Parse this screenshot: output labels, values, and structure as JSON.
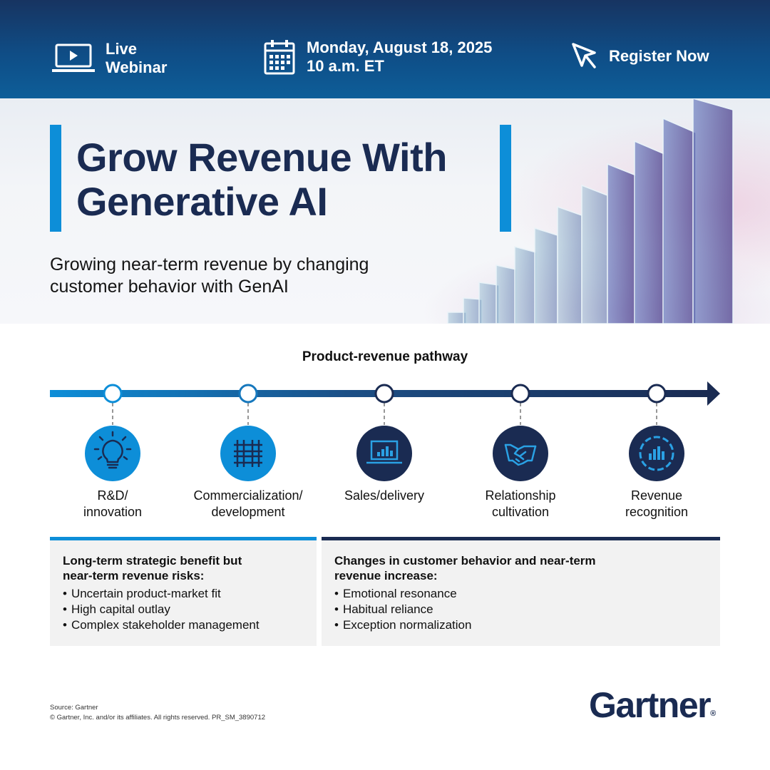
{
  "header": {
    "webinar_line1": "Live",
    "webinar_line2": "Webinar",
    "date": "Monday, August 18, 2025",
    "time": "10 a.m. ET",
    "register_label": "Register Now"
  },
  "hero": {
    "title_line1": "Grow Revenue With",
    "title_line2": "Generative AI",
    "subtitle_line1": "Growing near-term revenue by changing",
    "subtitle_line2": "customer behavior with GenAI"
  },
  "pathway": {
    "title": "Product-revenue pathway",
    "stages": [
      {
        "line1": "R&D/",
        "line2": "innovation",
        "icon": "lightbulb-icon",
        "tone": "light"
      },
      {
        "line1": "Commercialization/",
        "line2": "development",
        "icon": "circuit-grid-icon",
        "tone": "light"
      },
      {
        "line1": "Sales/delivery",
        "line2": "",
        "icon": "laptop-chart-icon",
        "tone": "dark"
      },
      {
        "line1": "Relationship",
        "line2": "cultivation",
        "icon": "handshake-icon",
        "tone": "dark"
      },
      {
        "line1": "Revenue",
        "line2": "recognition",
        "icon": "revenue-chart-icon",
        "tone": "dark"
      }
    ]
  },
  "boxes": {
    "left": {
      "head_line1": "Long-term strategic benefit but",
      "head_line2": "near-term revenue risks:",
      "items": [
        "Uncertain product-market fit",
        "High capital outlay",
        "Complex stakeholder management"
      ]
    },
    "right": {
      "head_line1": "Changes in customer behavior and near-term",
      "head_line2": "revenue increase:",
      "items": [
        "Emotional resonance",
        "Habitual reliance",
        "Exception normalization"
      ]
    }
  },
  "footer": {
    "source": "Source: Gartner",
    "copyright": "© Gartner, Inc. and/or its affiliates. All rights reserved. PR_SM_3890712",
    "logo": "Gartner",
    "logo_mark": "®"
  },
  "colors": {
    "navy": "#1a2b52",
    "blue": "#0d8ed8",
    "banner_top": "#173461",
    "banner_bottom": "#0d5e99",
    "box_bg": "#f2f2f2"
  }
}
